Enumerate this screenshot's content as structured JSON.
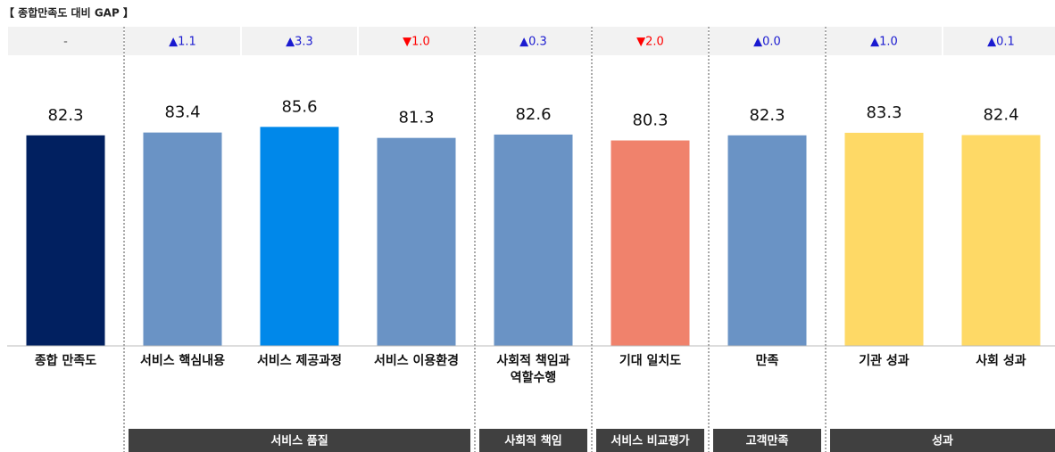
{
  "chart_data": {
    "type": "bar",
    "title": "【 종합만족도 대비 GAP 】",
    "categories": [
      "종합 만족도",
      "서비스 핵심내용",
      "서비스 제공과정",
      "서비스 이용환경",
      "사회적 책임과\n역할수행",
      "기대 일치도",
      "만족",
      "기관 성과",
      "사회 성과"
    ],
    "values": [
      82.3,
      83.4,
      85.6,
      81.3,
      82.6,
      80.3,
      82.3,
      83.3,
      82.4
    ],
    "colors": [
      "#012060",
      "#6a93c5",
      "#0088ea",
      "#6a93c5",
      "#6a93c5",
      "#f0826c",
      "#6a93c5",
      "#fed966",
      "#fed966"
    ],
    "gaps": [
      {
        "value": null,
        "label": "-"
      },
      {
        "value": 1.1,
        "label": "▲1.1"
      },
      {
        "value": 3.3,
        "label": "▲3.3"
      },
      {
        "value": -1.0,
        "label": "▼1.0"
      },
      {
        "value": 0.3,
        "label": "▲0.3"
      },
      {
        "value": -2.0,
        "label": "▼2.0"
      },
      {
        "value": 0.0,
        "label": "▲0.0"
      },
      {
        "value": 1.0,
        "label": "▲1.0"
      },
      {
        "value": 0.1,
        "label": "▲0.1"
      }
    ],
    "groups": [
      "서비스 품질",
      "사회적 책임",
      "서비스 비교평가",
      "고객만족",
      "성과"
    ],
    "ylim": [
      0,
      100
    ]
  }
}
